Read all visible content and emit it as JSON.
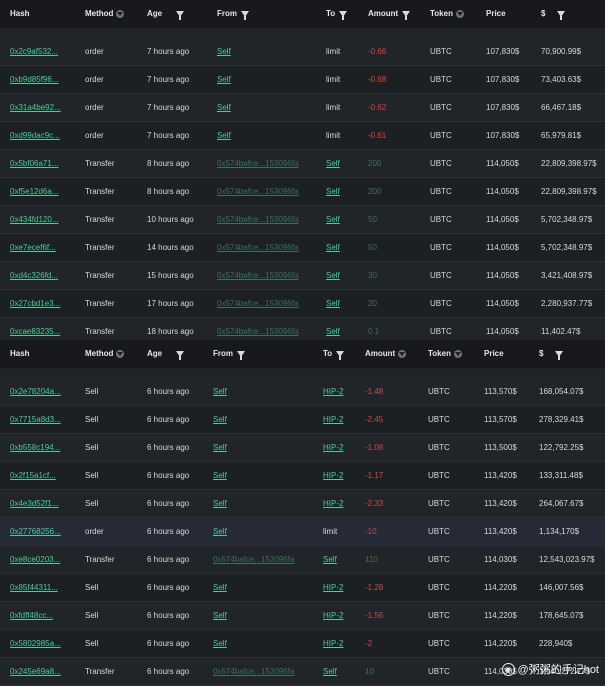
{
  "headers": {
    "hash": "Hash",
    "method": "Method",
    "age": "Age",
    "from": "From",
    "to": "To",
    "amount": "Amount",
    "token": "Token",
    "price": "Price",
    "usd": "$"
  },
  "table1": [
    {
      "hash": "0x2c9af532...",
      "method": "order",
      "age": "7 hours ago",
      "from": "Self",
      "to": "limit",
      "amount": "-0.66",
      "token": "UBTC",
      "price": "107,830$",
      "usd": "70,900.99$"
    },
    {
      "hash": "0xb9d85f96...",
      "method": "order",
      "age": "7 hours ago",
      "from": "Self",
      "to": "limit",
      "amount": "-0.68",
      "token": "UBTC",
      "price": "107,830$",
      "usd": "73,403.63$"
    },
    {
      "hash": "0x31a4be92...",
      "method": "order",
      "age": "7 hours ago",
      "from": "Self",
      "to": "limit",
      "amount": "-0.62",
      "token": "UBTC",
      "price": "107,830$",
      "usd": "66,467.18$"
    },
    {
      "hash": "0xd99dac9c...",
      "method": "order",
      "age": "7 hours ago",
      "from": "Self",
      "to": "limit",
      "amount": "-0.61",
      "token": "UBTC",
      "price": "107,830$",
      "usd": "65,979.81$"
    },
    {
      "hash": "0x5bf06a71...",
      "method": "Transfer",
      "age": "8 hours ago",
      "from": "0x574bafce...153096fa",
      "to": "Self",
      "amount": "200",
      "token": "UBTC",
      "price": "114,050$",
      "usd": "22,809,398.97$"
    },
    {
      "hash": "0xf5e12d6a...",
      "method": "Transfer",
      "age": "8 hours ago",
      "from": "0x574bafce...153096fa",
      "to": "Self",
      "amount": "200",
      "token": "UBTC",
      "price": "114,050$",
      "usd": "22,809,398.97$"
    },
    {
      "hash": "0x434fd120...",
      "method": "Transfer",
      "age": "10 hours ago",
      "from": "0x574bafce...153096fa",
      "to": "Self",
      "amount": "50",
      "token": "UBTC",
      "price": "114,050$",
      "usd": "5,702,348.97$"
    },
    {
      "hash": "0xe7ecef6f...",
      "method": "Transfer",
      "age": "14 hours ago",
      "from": "0x574bafce...153096fa",
      "to": "Self",
      "amount": "50",
      "token": "UBTC",
      "price": "114,050$",
      "usd": "5,702,348.97$"
    },
    {
      "hash": "0xd4c326fd...",
      "method": "Transfer",
      "age": "15 hours ago",
      "from": "0x574bafce...153096fa",
      "to": "Self",
      "amount": "30",
      "token": "UBTC",
      "price": "114,050$",
      "usd": "3,421,408.97$"
    },
    {
      "hash": "0x27cbd1e3...",
      "method": "Transfer",
      "age": "17 hours ago",
      "from": "0x574bafce...153096fa",
      "to": "Self",
      "amount": "20",
      "token": "UBTC",
      "price": "114,050$",
      "usd": "2,280,937.77$"
    },
    {
      "hash": "0xcae83235...",
      "method": "Transfer",
      "age": "18 hours ago",
      "from": "0x574bafce...153096fa",
      "to": "Self",
      "amount": "0.1",
      "token": "UBTC",
      "price": "114,050$",
      "usd": "11,402.47$"
    }
  ],
  "table2": [
    {
      "hash": "0x2e78204a...",
      "method": "Sell",
      "age": "6 hours ago",
      "from": "Self",
      "to": "HIP-2",
      "amount": "-1.48",
      "token": "UBTC",
      "price": "113,570$",
      "usd": "168,054.07$"
    },
    {
      "hash": "0x7715a8d3...",
      "method": "Sell",
      "age": "6 hours ago",
      "from": "Self",
      "to": "HIP-2",
      "amount": "-2.45",
      "token": "UBTC",
      "price": "113,570$",
      "usd": "278,329.41$"
    },
    {
      "hash": "0xb558c194...",
      "method": "Sell",
      "age": "6 hours ago",
      "from": "Self",
      "to": "HIP-2",
      "amount": "-1.08",
      "token": "UBTC",
      "price": "113,500$",
      "usd": "122,792.25$"
    },
    {
      "hash": "0x2f15a1cf...",
      "method": "Sell",
      "age": "6 hours ago",
      "from": "Self",
      "to": "HIP-2",
      "amount": "-1.17",
      "token": "UBTC",
      "price": "113,420$",
      "usd": "133,311.48$"
    },
    {
      "hash": "0x4e3d52f1...",
      "method": "Sell",
      "age": "6 hours ago",
      "from": "Self",
      "to": "HIP-2",
      "amount": "-2.33",
      "token": "UBTC",
      "price": "113,420$",
      "usd": "264,067.67$"
    },
    {
      "hash": "0x27768256...",
      "method": "order",
      "age": "6 hours ago",
      "from": "Self",
      "to": "limit",
      "amount": "-10",
      "token": "UBTC",
      "price": "113,420$",
      "usd": "1,134,170$"
    },
    {
      "hash": "0xe8ce0203...",
      "method": "Transfer",
      "age": "6 hours ago",
      "from": "0x574bafce...153096fa",
      "to": "Self",
      "amount": "110",
      "token": "UBTC",
      "price": "114,030$",
      "usd": "12,543,023.97$"
    },
    {
      "hash": "0x85f44311...",
      "method": "Sell",
      "age": "6 hours ago",
      "from": "Self",
      "to": "HIP-2",
      "amount": "-1.28",
      "token": "UBTC",
      "price": "114,220$",
      "usd": "146,007.56$"
    },
    {
      "hash": "0xfdff48cc...",
      "method": "Sell",
      "age": "6 hours ago",
      "from": "Self",
      "to": "HIP-2",
      "amount": "-1.56",
      "token": "UBTC",
      "price": "114,220$",
      "usd": "178,645.07$"
    },
    {
      "hash": "0x5802985a...",
      "method": "Sell",
      "age": "6 hours ago",
      "from": "Self",
      "to": "HIP-2",
      "amount": "-2",
      "token": "UBTC",
      "price": "114,220$",
      "usd": "228,940$"
    },
    {
      "hash": "0x245e69a8...",
      "method": "Transfer",
      "age": "6 hours ago",
      "from": "0x574bafce...153096fa",
      "to": "Self",
      "amount": "10",
      "token": "UBTC",
      "price": "114,030$",
      "usd": "1,140,272.77$"
    }
  ],
  "highlighted_row": {
    "table": "table2",
    "index": 5
  },
  "watermark": {
    "icon": "weibo-logo",
    "text": "@粥粥的手记hot"
  },
  "colors": {
    "link": "#4ec9a0",
    "negative": "#d64545",
    "positive": "#3b6f5a",
    "background": "#1b1d20"
  }
}
